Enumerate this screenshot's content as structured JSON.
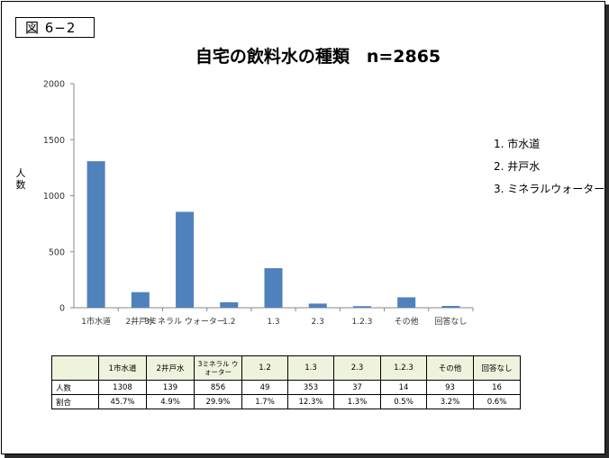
{
  "figure_label": "図 6−2",
  "y_axis_label": "人数",
  "legend": [
    "1. 市水道",
    "2. 井戸水",
    "3. ミネラルウォーター"
  ],
  "table": {
    "header": [
      "",
      "1市水道",
      "2井戸水",
      "3ミネラル ウォーター",
      "1.2",
      "1.3",
      "2.3",
      "1.2.3",
      "その他",
      "回答なし"
    ],
    "rows": [
      [
        "人数",
        "1308",
        "139",
        "856",
        "49",
        "353",
        "37",
        "14",
        "93",
        "16"
      ],
      [
        "割合",
        "45.7%",
        "4.9%",
        "29.9%",
        "1.7%",
        "12.3%",
        "1.3%",
        "0.5%",
        "3.2%",
        "0.6%"
      ]
    ]
  },
  "chart_data": {
    "type": "bar",
    "title": "自宅の飲料水の種類　n=2865",
    "ylabel": "人数",
    "xlabel": "",
    "categories": [
      "1市水道",
      "2井戸水",
      "3ミネラル ウォーター",
      "1.2",
      "1.3",
      "2.3",
      "1.2.3",
      "その他",
      "回答なし"
    ],
    "values": [
      1308,
      139,
      856,
      49,
      353,
      37,
      14,
      93,
      16
    ],
    "ylim": [
      0,
      2000
    ],
    "yticks": [
      0,
      500,
      1000,
      1500,
      2000
    ],
    "bar_color": "#4f81bd",
    "grid": false,
    "legend_position": "right"
  }
}
